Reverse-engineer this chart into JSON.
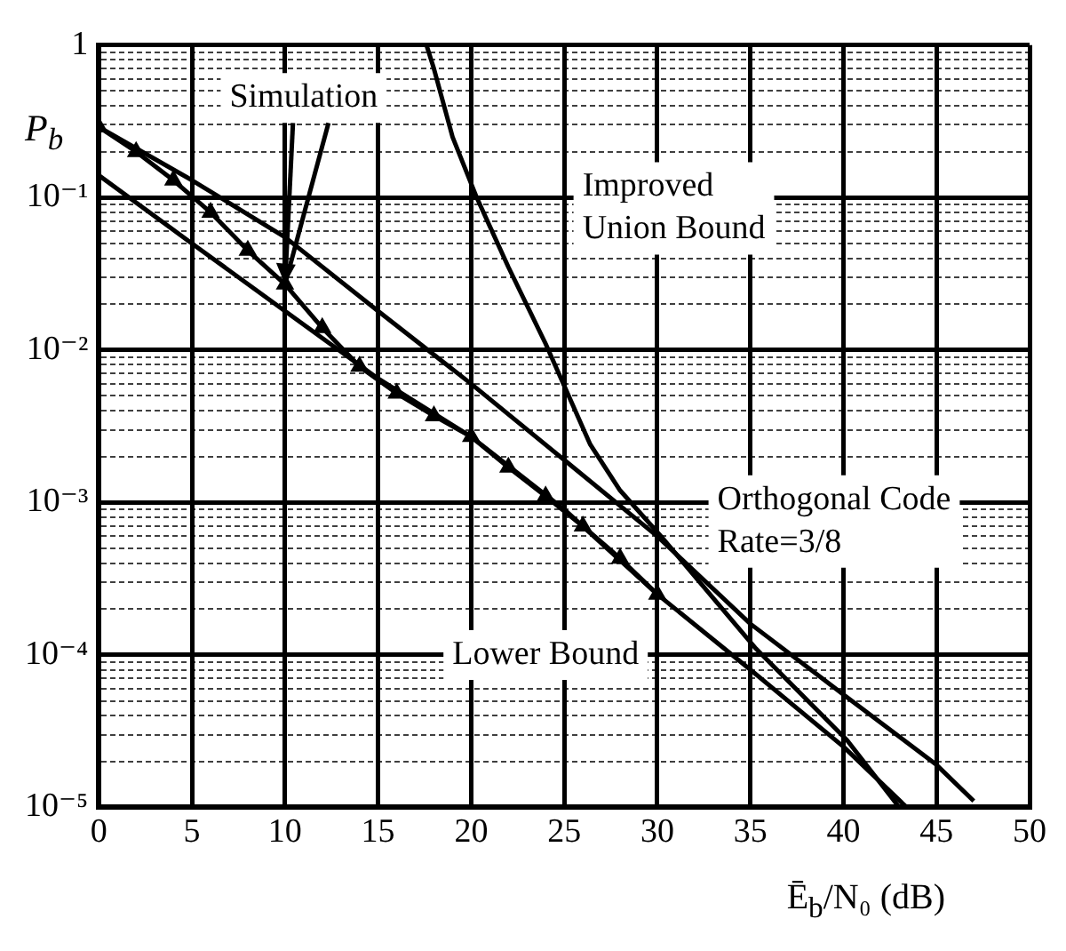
{
  "chart_data": {
    "type": "line",
    "xlabel": "Ē$_{b}$/N₀ (dB)",
    "ylabel": "P$_{b}$",
    "log": "y",
    "grid": true,
    "legend": false,
    "line_style": "solid",
    "xlim": [
      0,
      50
    ],
    "xticks": [
      0,
      5,
      10,
      15,
      20,
      25,
      30,
      35,
      40,
      45,
      50
    ],
    "ylim": [
      1e-05,
      1
    ],
    "yticks": [
      {
        "value": 1e-05,
        "label": "10⁻⁵"
      },
      {
        "value": 2e-05,
        "label": null
      },
      {
        "value": 3e-05,
        "label": null
      },
      {
        "value": 4e-05,
        "label": null
      },
      {
        "value": 5e-05,
        "label": null
      },
      {
        "value": 6e-05,
        "label": null
      },
      {
        "value": 7e-05,
        "label": null
      },
      {
        "value": 8e-05,
        "label": null
      },
      {
        "value": 9e-05,
        "label": null
      },
      {
        "value": 0.0001,
        "label": "10⁻⁴"
      },
      {
        "value": 0.0002,
        "label": null
      },
      {
        "value": 0.0003,
        "label": null
      },
      {
        "value": 0.0004,
        "label": null
      },
      {
        "value": 0.0005,
        "label": null
      },
      {
        "value": 0.0006,
        "label": null
      },
      {
        "value": 0.0007,
        "label": null
      },
      {
        "value": 0.0008,
        "label": null
      },
      {
        "value": 0.0009,
        "label": null
      },
      {
        "value": 0.001,
        "label": "10⁻³"
      },
      {
        "value": 0.002,
        "label": null
      },
      {
        "value": 0.003,
        "label": null
      },
      {
        "value": 0.004,
        "label": null
      },
      {
        "value": 0.005,
        "label": null
      },
      {
        "value": 0.006,
        "label": null
      },
      {
        "value": 0.007,
        "label": null
      },
      {
        "value": 0.008,
        "label": null
      },
      {
        "value": 0.009,
        "label": null
      },
      {
        "value": 0.01,
        "label": "10⁻²"
      },
      {
        "value": 0.02,
        "label": null
      },
      {
        "value": 0.03,
        "label": null
      },
      {
        "value": 0.04,
        "label": null
      },
      {
        "value": 0.05,
        "label": null
      },
      {
        "value": 0.06,
        "label": null
      },
      {
        "value": 0.07,
        "label": null
      },
      {
        "value": 0.08,
        "label": null
      },
      {
        "value": 0.09,
        "label": null
      },
      {
        "value": 0.1,
        "label": "10⁻¹"
      },
      {
        "value": 0.2,
        "label": null
      },
      {
        "value": 0.3,
        "label": null
      },
      {
        "value": 0.4,
        "label": null
      },
      {
        "value": 0.5,
        "label": null
      },
      {
        "value": 0.6,
        "label": null
      },
      {
        "value": 0.7,
        "label": null
      },
      {
        "value": 0.8,
        "label": null
      },
      {
        "value": 0.9,
        "label": null
      },
      {
        "value": 1,
        "label": "1"
      }
    ],
    "annotations": [
      "Orthogonal Code\nRate=3/8"
    ],
    "series": [
      {
        "name": "Simulation",
        "color": "#000000",
        "marker": "triangle",
        "x": [
          0,
          2,
          4,
          6,
          8,
          10,
          12,
          14,
          16,
          18,
          20,
          22,
          24,
          26,
          28,
          30
        ],
        "values": [
          0.29,
          0.2,
          0.13,
          0.08,
          0.045,
          0.027,
          0.014,
          0.0078,
          0.0052,
          0.0037,
          0.0027,
          0.0017,
          0.0011,
          0.0007,
          0.00043,
          0.00025
        ]
      },
      {
        "name": "Improved Union Bound",
        "color": "#000000",
        "x": [
          17.6,
          18,
          19,
          20.3,
          22,
          24,
          26.4,
          28,
          30.2,
          35.3,
          40.2,
          43
        ],
        "values": [
          1,
          0.7,
          0.25,
          0.1,
          0.035,
          0.011,
          0.0024,
          0.0012,
          0.0006,
          0.00011,
          2.75e-05,
          1e-05
        ]
      },
      {
        "name": "Lower Bound",
        "color": "#000000",
        "x": [
          0,
          5,
          10,
          15,
          20,
          25,
          30,
          35,
          40,
          43.4
        ],
        "values": [
          0.14,
          0.05,
          0.018,
          0.0065,
          0.0027,
          0.0009,
          0.00025,
          8e-05,
          2.5e-05,
          1e-05
        ]
      },
      {
        "color": "#000000",
        "x": [
          0,
          5,
          10,
          15,
          20,
          25,
          30,
          35,
          40,
          45,
          47
        ],
        "values": [
          0.29,
          0.13,
          0.055,
          0.018,
          0.006,
          0.0019,
          0.0006,
          0.00016,
          5.5e-05,
          1.9e-05,
          1.1e-05
        ]
      }
    ]
  }
}
